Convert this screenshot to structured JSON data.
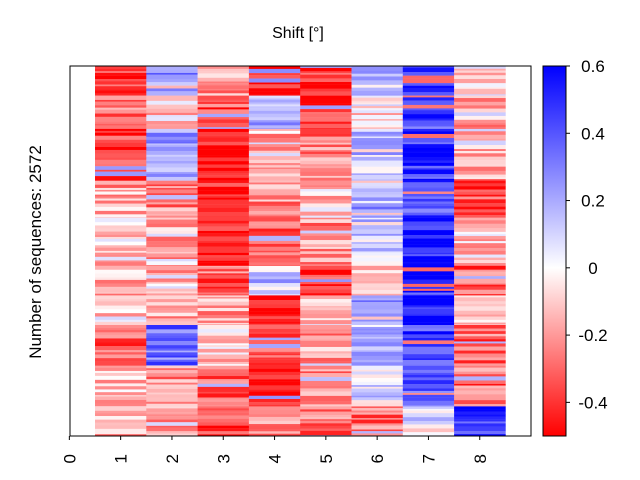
{
  "chart_data": {
    "type": "heatmap",
    "title": "Shift [°]",
    "ylabel": "Number of sequences: 2572",
    "xlabel": "",
    "columns": [
      "0",
      "1",
      "2",
      "3",
      "4",
      "5",
      "6",
      "7",
      "8"
    ],
    "colormap": {
      "name": "bwr",
      "min": -0.5,
      "max": 0.6,
      "low_color": "#ff0000",
      "mid_color": "#ffffff",
      "high_color": "#0000ff"
    },
    "colorbar_ticks": [
      0.6,
      0.4,
      0.2,
      0,
      -0.2,
      -0.4
    ],
    "colorbar_tick_labels": [
      "0.6",
      "0.4",
      "0.2",
      "0",
      "-0.2",
      "-0.4"
    ],
    "row_count": 2572,
    "row_blocks": [
      {
        "start": 0.0,
        "end": 0.08,
        "values": [
          null,
          -0.4,
          0.25,
          -0.2,
          -0.45,
          -0.35,
          0.12,
          0.5,
          -0.05
        ]
      },
      {
        "start": 0.08,
        "end": 0.17,
        "values": [
          null,
          -0.28,
          -0.1,
          -0.35,
          0.2,
          -0.38,
          -0.05,
          0.45,
          -0.2
        ]
      },
      {
        "start": 0.17,
        "end": 0.31,
        "values": [
          null,
          -0.4,
          0.25,
          -0.48,
          -0.15,
          -0.25,
          0.15,
          0.48,
          -0.18
        ]
      },
      {
        "start": 0.31,
        "end": 0.41,
        "values": [
          null,
          -0.18,
          -0.25,
          -0.45,
          -0.2,
          -0.1,
          0.2,
          0.4,
          -0.35
        ]
      },
      {
        "start": 0.41,
        "end": 0.54,
        "values": [
          null,
          -0.1,
          -0.15,
          -0.48,
          -0.3,
          -0.2,
          0.12,
          0.55,
          -0.1
        ]
      },
      {
        "start": 0.54,
        "end": 0.62,
        "values": [
          null,
          -0.12,
          -0.15,
          -0.3,
          0.15,
          -0.42,
          -0.12,
          0.5,
          -0.32
        ]
      },
      {
        "start": 0.62,
        "end": 0.7,
        "values": [
          null,
          -0.08,
          -0.2,
          -0.22,
          -0.48,
          -0.08,
          0.2,
          0.55,
          -0.12
        ]
      },
      {
        "start": 0.7,
        "end": 0.81,
        "values": [
          null,
          -0.35,
          0.35,
          -0.1,
          -0.35,
          -0.18,
          0.15,
          0.45,
          -0.3
        ]
      },
      {
        "start": 0.81,
        "end": 0.92,
        "values": [
          null,
          -0.15,
          -0.22,
          -0.3,
          -0.42,
          -0.25,
          0.1,
          0.38,
          -0.3
        ]
      },
      {
        "start": 0.92,
        "end": 1.0,
        "values": [
          null,
          -0.18,
          -0.15,
          -0.38,
          -0.22,
          -0.28,
          -0.3,
          0.05,
          0.5
        ]
      }
    ]
  }
}
